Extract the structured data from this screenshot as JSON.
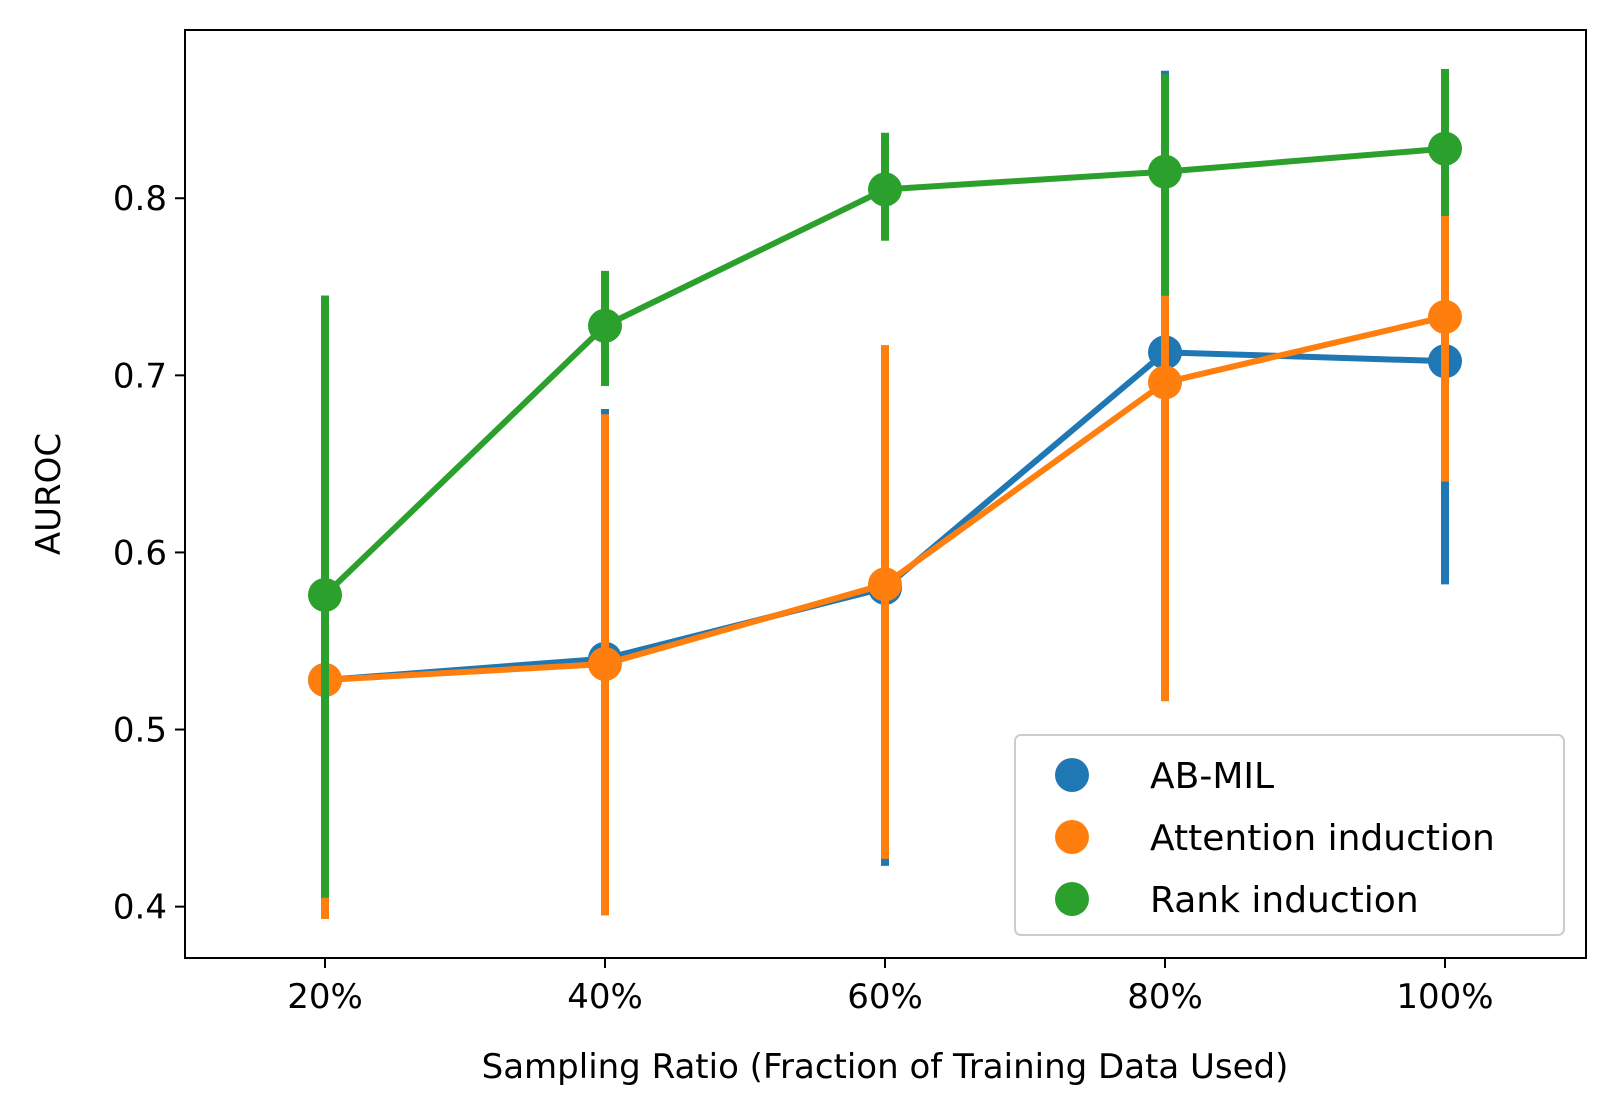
{
  "chart_data": {
    "type": "line",
    "title": "",
    "xlabel": "Sampling Ratio (Fraction of Training Data Used)",
    "ylabel": "AUROC",
    "categories": [
      "20%",
      "40%",
      "60%",
      "80%",
      "100%"
    ],
    "ylim": [
      0.371,
      0.895
    ],
    "yticks": [
      0.4,
      0.5,
      0.6,
      0.7,
      0.8
    ],
    "ytick_labels": [
      "0.4",
      "0.5",
      "0.6",
      "0.7",
      "0.8"
    ],
    "grid": false,
    "legend_position": "lower-right",
    "series": [
      {
        "name": "AB-MIL",
        "color": "#1f77b4",
        "values": [
          0.528,
          0.54,
          0.58,
          0.713,
          0.708
        ],
        "err_low": [
          0.393,
          0.395,
          0.423,
          0.517,
          0.582
        ],
        "err_high": [
          0.745,
          0.681,
          0.717,
          0.872,
          0.79
        ]
      },
      {
        "name": "Attention induction",
        "color": "#ff7f0e",
        "values": [
          0.528,
          0.537,
          0.582,
          0.696,
          0.733
        ],
        "err_low": [
          0.393,
          0.395,
          0.427,
          0.516,
          0.64
        ],
        "err_high": [
          0.745,
          0.678,
          0.717,
          0.745,
          0.79
        ]
      },
      {
        "name": "Rank induction",
        "color": "#2ca02c",
        "values": [
          0.576,
          0.728,
          0.805,
          0.815,
          0.828
        ],
        "err_low": [
          0.405,
          0.694,
          0.776,
          0.745,
          0.79
        ],
        "err_high": [
          0.745,
          0.759,
          0.837,
          0.87,
          0.873
        ]
      }
    ]
  }
}
